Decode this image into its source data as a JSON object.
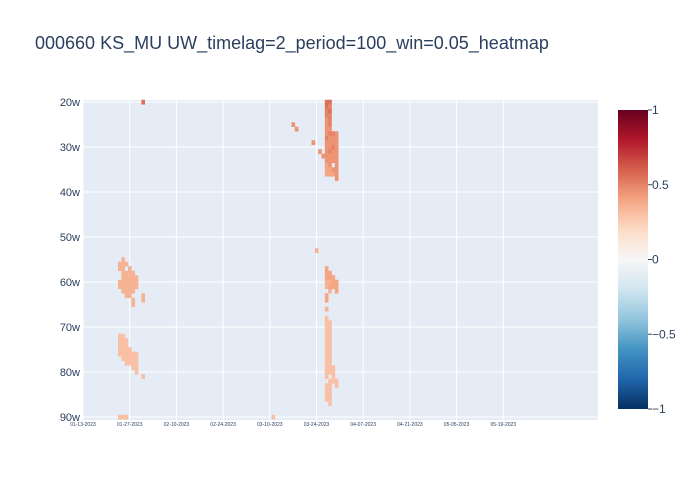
{
  "chart_data": {
    "type": "heatmap",
    "title": "000660 KS_MU UW_timelag=2_period=100_win=0.05_heatmap",
    "xlabel": "",
    "ylabel": "",
    "x_tick_labels": [
      "01-13-2023",
      "01-27-2023",
      "02-10-2023",
      "02-24-2023",
      "03-10-2023",
      "03-24-2023",
      "04-07-2023",
      "04-21-2023",
      "05-05-2023",
      "05-19-2023"
    ],
    "y_tick_labels": [
      "20w",
      "30w",
      "40w",
      "50w",
      "60w",
      "70w",
      "80w",
      "90w"
    ],
    "x_range_days": [
      0,
      143
    ],
    "y_range_weeks": [
      20,
      90
    ],
    "colorbar": {
      "range": [
        -1,
        1
      ],
      "tick_values": [
        1,
        0.5,
        0,
        -0.5,
        -1
      ],
      "tick_labels": [
        "1",
        "0.5",
        "0",
        "−0.5",
        "−1"
      ],
      "colorscale": [
        "#053061",
        "#2166ac",
        "#4393c3",
        "#92c5de",
        "#d1e5f0",
        "#f7f7f7",
        "#fddbc7",
        "#f4a582",
        "#d6604d",
        "#b2182b",
        "#67001f"
      ]
    },
    "grid": true,
    "cells": [
      {
        "x": 18,
        "y": 20,
        "v": 0.55
      },
      {
        "x": 63,
        "y": 25,
        "v": 0.45
      },
      {
        "x": 64,
        "y": 26,
        "v": 0.45
      },
      {
        "x": 69,
        "y": 29,
        "v": 0.45
      },
      {
        "x": 71,
        "y": 31,
        "v": 0.45
      },
      {
        "x": 72,
        "y": 32,
        "v": 0.45
      },
      {
        "x": 70,
        "y": 53,
        "v": 0.35
      },
      {
        "x": 73,
        "y": 20,
        "v": 0.55
      },
      {
        "x": 73,
        "y": 21,
        "v": 0.55
      },
      {
        "x": 73,
        "y": 22,
        "v": 0.5
      },
      {
        "x": 73,
        "y": 23,
        "v": 0.5
      },
      {
        "x": 73,
        "y": 24,
        "v": 0.45
      },
      {
        "x": 73,
        "y": 25,
        "v": 0.45
      },
      {
        "x": 73,
        "y": 26,
        "v": 0.45
      },
      {
        "x": 73,
        "y": 27,
        "v": 0.45
      },
      {
        "x": 73,
        "y": 28,
        "v": 0.5
      },
      {
        "x": 73,
        "y": 29,
        "v": 0.45
      },
      {
        "x": 73,
        "y": 30,
        "v": 0.45
      },
      {
        "x": 73,
        "y": 31,
        "v": 0.45
      },
      {
        "x": 73,
        "y": 32,
        "v": 0.45
      },
      {
        "x": 73,
        "y": 33,
        "v": 0.45
      },
      {
        "x": 73,
        "y": 34,
        "v": 0.4
      },
      {
        "x": 73,
        "y": 35,
        "v": 0.4
      },
      {
        "x": 73,
        "y": 36,
        "v": 0.4
      },
      {
        "x": 74,
        "y": 20,
        "v": 0.55
      },
      {
        "x": 74,
        "y": 21,
        "v": 0.5
      },
      {
        "x": 74,
        "y": 22,
        "v": 0.55
      },
      {
        "x": 74,
        "y": 23,
        "v": 0.5
      },
      {
        "x": 74,
        "y": 24,
        "v": 0.5
      },
      {
        "x": 74,
        "y": 25,
        "v": 0.5
      },
      {
        "x": 74,
        "y": 26,
        "v": 0.45
      },
      {
        "x": 74,
        "y": 27,
        "v": 0.5
      },
      {
        "x": 74,
        "y": 28,
        "v": 0.45
      },
      {
        "x": 74,
        "y": 29,
        "v": 0.45
      },
      {
        "x": 74,
        "y": 30,
        "v": 0.45
      },
      {
        "x": 74,
        "y": 31,
        "v": 0.5
      },
      {
        "x": 74,
        "y": 32,
        "v": 0.45
      },
      {
        "x": 74,
        "y": 33,
        "v": 0.45
      },
      {
        "x": 74,
        "y": 34,
        "v": 0.45
      },
      {
        "x": 74,
        "y": 35,
        "v": 0.4
      },
      {
        "x": 74,
        "y": 36,
        "v": 0.4
      },
      {
        "x": 75,
        "y": 27,
        "v": 0.5
      },
      {
        "x": 75,
        "y": 28,
        "v": 0.45
      },
      {
        "x": 75,
        "y": 29,
        "v": 0.45
      },
      {
        "x": 75,
        "y": 30,
        "v": 0.5
      },
      {
        "x": 75,
        "y": 31,
        "v": 0.45
      },
      {
        "x": 75,
        "y": 32,
        "v": 0.45
      },
      {
        "x": 75,
        "y": 33,
        "v": 0.45
      },
      {
        "x": 75,
        "y": 35,
        "v": 0.45
      },
      {
        "x": 75,
        "y": 36,
        "v": 0.4
      },
      {
        "x": 76,
        "y": 27,
        "v": 0.45
      },
      {
        "x": 76,
        "y": 28,
        "v": 0.45
      },
      {
        "x": 76,
        "y": 29,
        "v": 0.45
      },
      {
        "x": 76,
        "y": 30,
        "v": 0.45
      },
      {
        "x": 76,
        "y": 31,
        "v": 0.45
      },
      {
        "x": 76,
        "y": 32,
        "v": 0.45
      },
      {
        "x": 76,
        "y": 33,
        "v": 0.45
      },
      {
        "x": 76,
        "y": 34,
        "v": 0.45
      },
      {
        "x": 76,
        "y": 35,
        "v": 0.45
      },
      {
        "x": 76,
        "y": 36,
        "v": 0.45
      },
      {
        "x": 76,
        "y": 37,
        "v": 0.45
      },
      {
        "x": 73,
        "y": 57,
        "v": 0.4
      },
      {
        "x": 73,
        "y": 58,
        "v": 0.4
      },
      {
        "x": 73,
        "y": 59,
        "v": 0.4
      },
      {
        "x": 73,
        "y": 60,
        "v": 0.35
      },
      {
        "x": 73,
        "y": 61,
        "v": 0.35
      },
      {
        "x": 73,
        "y": 63,
        "v": 0.4
      },
      {
        "x": 73,
        "y": 64,
        "v": 0.4
      },
      {
        "x": 73,
        "y": 66,
        "v": 0.35
      },
      {
        "x": 74,
        "y": 58,
        "v": 0.4
      },
      {
        "x": 74,
        "y": 59,
        "v": 0.4
      },
      {
        "x": 74,
        "y": 60,
        "v": 0.35
      },
      {
        "x": 74,
        "y": 61,
        "v": 0.4
      },
      {
        "x": 74,
        "y": 62,
        "v": 0.35
      },
      {
        "x": 75,
        "y": 59,
        "v": 0.4
      },
      {
        "x": 75,
        "y": 60,
        "v": 0.4
      },
      {
        "x": 75,
        "y": 61,
        "v": 0.4
      },
      {
        "x": 76,
        "y": 60,
        "v": 0.4
      },
      {
        "x": 76,
        "y": 61,
        "v": 0.4
      },
      {
        "x": 76,
        "y": 62,
        "v": 0.4
      },
      {
        "x": 73,
        "y": 68,
        "v": 0.3
      },
      {
        "x": 73,
        "y": 69,
        "v": 0.3
      },
      {
        "x": 73,
        "y": 70,
        "v": 0.3
      },
      {
        "x": 73,
        "y": 71,
        "v": 0.3
      },
      {
        "x": 73,
        "y": 72,
        "v": 0.3
      },
      {
        "x": 73,
        "y": 73,
        "v": 0.3
      },
      {
        "x": 73,
        "y": 74,
        "v": 0.3
      },
      {
        "x": 73,
        "y": 75,
        "v": 0.3
      },
      {
        "x": 73,
        "y": 76,
        "v": 0.3
      },
      {
        "x": 73,
        "y": 77,
        "v": 0.3
      },
      {
        "x": 73,
        "y": 78,
        "v": 0.3
      },
      {
        "x": 73,
        "y": 79,
        "v": 0.3
      },
      {
        "x": 73,
        "y": 80,
        "v": 0.3
      },
      {
        "x": 73,
        "y": 81,
        "v": 0.3
      },
      {
        "x": 73,
        "y": 83,
        "v": 0.3
      },
      {
        "x": 73,
        "y": 84,
        "v": 0.3
      },
      {
        "x": 73,
        "y": 85,
        "v": 0.3
      },
      {
        "x": 73,
        "y": 86,
        "v": 0.3
      },
      {
        "x": 74,
        "y": 69,
        "v": 0.3
      },
      {
        "x": 74,
        "y": 70,
        "v": 0.3
      },
      {
        "x": 74,
        "y": 71,
        "v": 0.3
      },
      {
        "x": 74,
        "y": 72,
        "v": 0.3
      },
      {
        "x": 74,
        "y": 73,
        "v": 0.3
      },
      {
        "x": 74,
        "y": 74,
        "v": 0.3
      },
      {
        "x": 74,
        "y": 75,
        "v": 0.3
      },
      {
        "x": 74,
        "y": 76,
        "v": 0.3
      },
      {
        "x": 74,
        "y": 77,
        "v": 0.3
      },
      {
        "x": 74,
        "y": 78,
        "v": 0.3
      },
      {
        "x": 74,
        "y": 79,
        "v": 0.3
      },
      {
        "x": 74,
        "y": 80,
        "v": 0.3
      },
      {
        "x": 74,
        "y": 82,
        "v": 0.3
      },
      {
        "x": 74,
        "y": 83,
        "v": 0.3
      },
      {
        "x": 74,
        "y": 84,
        "v": 0.3
      },
      {
        "x": 74,
        "y": 85,
        "v": 0.3
      },
      {
        "x": 74,
        "y": 86,
        "v": 0.3
      },
      {
        "x": 74,
        "y": 87,
        "v": 0.3
      },
      {
        "x": 75,
        "y": 79,
        "v": 0.3
      },
      {
        "x": 75,
        "y": 80,
        "v": 0.3
      },
      {
        "x": 75,
        "y": 81,
        "v": 0.3
      },
      {
        "x": 75,
        "y": 82,
        "v": 0.3
      },
      {
        "x": 76,
        "y": 82,
        "v": 0.3
      },
      {
        "x": 76,
        "y": 83,
        "v": 0.3
      },
      {
        "x": 11,
        "y": 56,
        "v": 0.35
      },
      {
        "x": 11,
        "y": 57,
        "v": 0.35
      },
      {
        "x": 11,
        "y": 60,
        "v": 0.35
      },
      {
        "x": 11,
        "y": 61,
        "v": 0.35
      },
      {
        "x": 12,
        "y": 55,
        "v": 0.35
      },
      {
        "x": 12,
        "y": 56,
        "v": 0.35
      },
      {
        "x": 12,
        "y": 57,
        "v": 0.35
      },
      {
        "x": 12,
        "y": 58,
        "v": 0.35
      },
      {
        "x": 12,
        "y": 59,
        "v": 0.35
      },
      {
        "x": 12,
        "y": 60,
        "v": 0.35
      },
      {
        "x": 12,
        "y": 61,
        "v": 0.35
      },
      {
        "x": 12,
        "y": 62,
        "v": 0.35
      },
      {
        "x": 13,
        "y": 56,
        "v": 0.35
      },
      {
        "x": 13,
        "y": 58,
        "v": 0.35
      },
      {
        "x": 13,
        "y": 59,
        "v": 0.35
      },
      {
        "x": 13,
        "y": 60,
        "v": 0.35
      },
      {
        "x": 13,
        "y": 61,
        "v": 0.35
      },
      {
        "x": 13,
        "y": 62,
        "v": 0.35
      },
      {
        "x": 13,
        "y": 63,
        "v": 0.35
      },
      {
        "x": 14,
        "y": 57,
        "v": 0.35
      },
      {
        "x": 14,
        "y": 58,
        "v": 0.35
      },
      {
        "x": 14,
        "y": 59,
        "v": 0.35
      },
      {
        "x": 14,
        "y": 60,
        "v": 0.35
      },
      {
        "x": 14,
        "y": 61,
        "v": 0.35
      },
      {
        "x": 14,
        "y": 62,
        "v": 0.35
      },
      {
        "x": 14,
        "y": 63,
        "v": 0.35
      },
      {
        "x": 15,
        "y": 58,
        "v": 0.35
      },
      {
        "x": 15,
        "y": 59,
        "v": 0.35
      },
      {
        "x": 15,
        "y": 60,
        "v": 0.35
      },
      {
        "x": 15,
        "y": 61,
        "v": 0.35
      },
      {
        "x": 15,
        "y": 62,
        "v": 0.35
      },
      {
        "x": 15,
        "y": 64,
        "v": 0.35
      },
      {
        "x": 15,
        "y": 65,
        "v": 0.35
      },
      {
        "x": 16,
        "y": 59,
        "v": 0.35
      },
      {
        "x": 16,
        "y": 60,
        "v": 0.35
      },
      {
        "x": 16,
        "y": 61,
        "v": 0.35
      },
      {
        "x": 18,
        "y": 63,
        "v": 0.35
      },
      {
        "x": 18,
        "y": 64,
        "v": 0.35
      },
      {
        "x": 11,
        "y": 72,
        "v": 0.3
      },
      {
        "x": 11,
        "y": 73,
        "v": 0.3
      },
      {
        "x": 11,
        "y": 74,
        "v": 0.3
      },
      {
        "x": 11,
        "y": 75,
        "v": 0.3
      },
      {
        "x": 11,
        "y": 76,
        "v": 0.3
      },
      {
        "x": 12,
        "y": 72,
        "v": 0.3
      },
      {
        "x": 12,
        "y": 73,
        "v": 0.3
      },
      {
        "x": 12,
        "y": 74,
        "v": 0.3
      },
      {
        "x": 12,
        "y": 75,
        "v": 0.3
      },
      {
        "x": 12,
        "y": 76,
        "v": 0.3
      },
      {
        "x": 12,
        "y": 77,
        "v": 0.3
      },
      {
        "x": 13,
        "y": 73,
        "v": 0.3
      },
      {
        "x": 13,
        "y": 74,
        "v": 0.3
      },
      {
        "x": 13,
        "y": 75,
        "v": 0.3
      },
      {
        "x": 13,
        "y": 76,
        "v": 0.3
      },
      {
        "x": 13,
        "y": 77,
        "v": 0.3
      },
      {
        "x": 13,
        "y": 78,
        "v": 0.3
      },
      {
        "x": 14,
        "y": 75,
        "v": 0.3
      },
      {
        "x": 14,
        "y": 76,
        "v": 0.3
      },
      {
        "x": 14,
        "y": 77,
        "v": 0.3
      },
      {
        "x": 14,
        "y": 78,
        "v": 0.3
      },
      {
        "x": 15,
        "y": 76,
        "v": 0.3
      },
      {
        "x": 15,
        "y": 77,
        "v": 0.3
      },
      {
        "x": 15,
        "y": 78,
        "v": 0.3
      },
      {
        "x": 15,
        "y": 79,
        "v": 0.3
      },
      {
        "x": 16,
        "y": 76,
        "v": 0.3
      },
      {
        "x": 16,
        "y": 77,
        "v": 0.3
      },
      {
        "x": 16,
        "y": 78,
        "v": 0.3
      },
      {
        "x": 16,
        "y": 79,
        "v": 0.3
      },
      {
        "x": 16,
        "y": 80,
        "v": 0.3
      },
      {
        "x": 18,
        "y": 81,
        "v": 0.3
      },
      {
        "x": 11,
        "y": 90,
        "v": 0.3
      },
      {
        "x": 12,
        "y": 90,
        "v": 0.3
      },
      {
        "x": 13,
        "y": 90,
        "v": 0.3
      },
      {
        "x": 57,
        "y": 90,
        "v": 0.3
      }
    ]
  }
}
